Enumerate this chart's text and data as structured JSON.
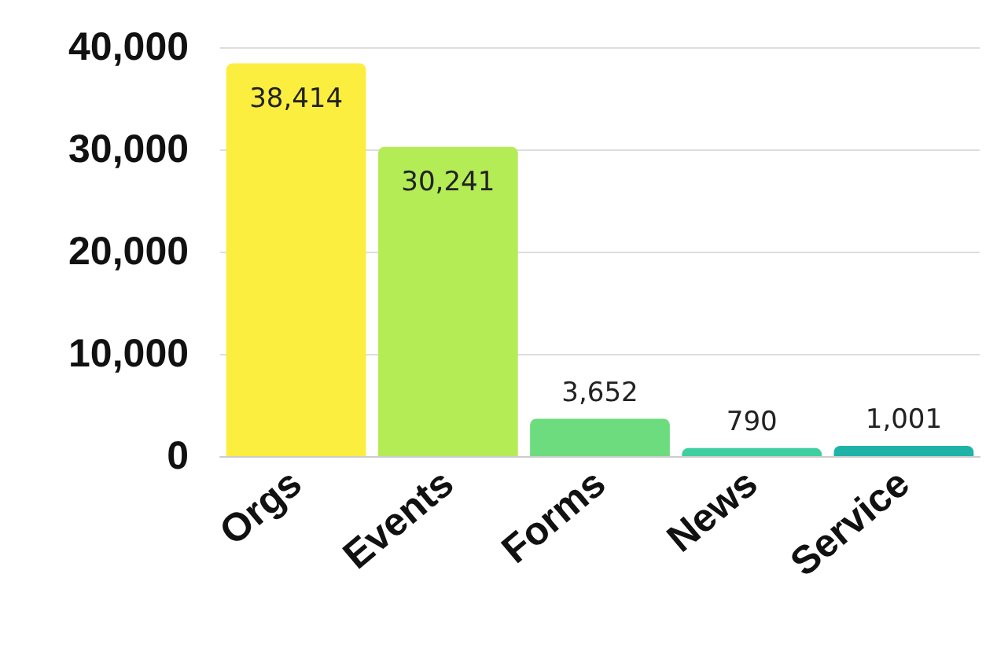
{
  "chart_data": {
    "type": "bar",
    "categories": [
      "Orgs",
      "Events",
      "Forms",
      "News",
      "Service"
    ],
    "values": [
      38414,
      30241,
      3652,
      790,
      1001
    ],
    "colors": [
      "#fcee3f",
      "#b3ec55",
      "#6ddc7f",
      "#3fcea0",
      "#1fb3a8"
    ],
    "value_labels": [
      "38,414",
      "30,241",
      "3,652",
      "790",
      "1,001"
    ],
    "ylim": [
      0,
      40000
    ],
    "yticks": [
      0,
      {
        "value": 10000,
        "label": "10,000"
      },
      {
        "value": 20000,
        "label": "20,000"
      },
      {
        "value": 30000,
        "label": "30,000"
      },
      {
        "value": 40000,
        "label": "40,000"
      }
    ],
    "grid": "y"
  }
}
